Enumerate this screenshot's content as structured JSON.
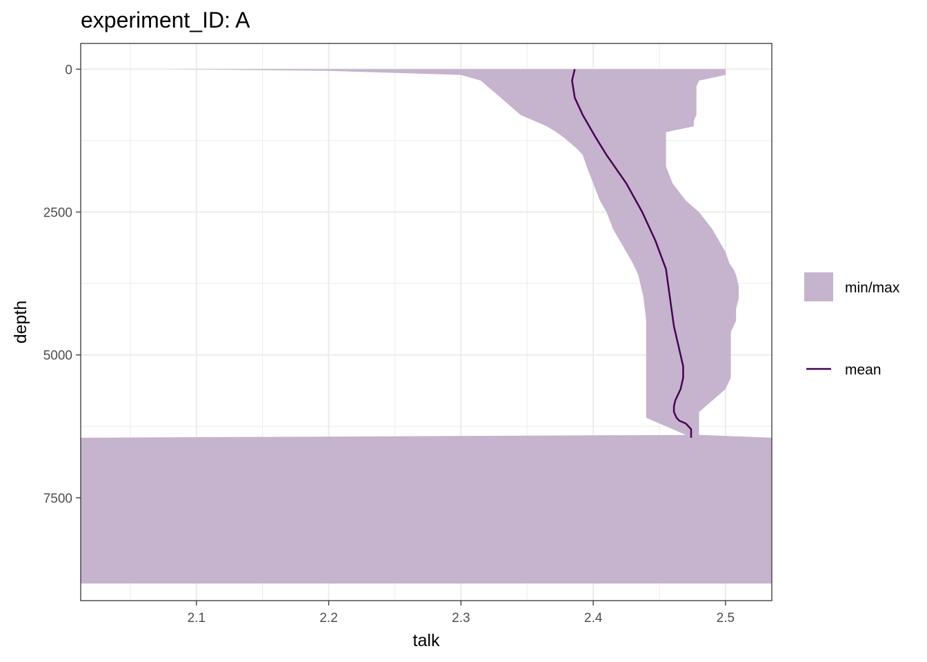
{
  "chart_data": {
    "type": "area",
    "title": "experiment_ID: A",
    "xlabel": "talk",
    "ylabel": "depth",
    "xlim": [
      2.0125,
      2.535
    ],
    "ylim": [
      -450,
      9300
    ],
    "y_reversed": true,
    "x_ticks": [
      2.1,
      2.2,
      2.3,
      2.4,
      2.5
    ],
    "x_tick_labels": [
      "2.1",
      "2.2",
      "2.3",
      "2.4",
      "2.5"
    ],
    "y_ticks": [
      0,
      2500,
      5000,
      7500
    ],
    "y_tick_labels": [
      "0",
      "2500",
      "5000",
      "7500"
    ],
    "grid": true,
    "legend_position": "right",
    "fill_color": "#c6b3cd",
    "line_color": "#440154",
    "series": [
      {
        "name": "min/max",
        "kind": "ribbon",
        "depth": [
          0,
          30,
          100,
          200,
          300,
          400,
          500,
          600,
          700,
          800,
          900,
          1000,
          1100,
          1200,
          1300,
          1400,
          1500,
          1700,
          2000,
          2300,
          2500,
          2800,
          3000,
          3200,
          3400,
          3500,
          3600,
          3700,
          3800,
          3900,
          4000,
          4200,
          4400,
          4600,
          4800,
          5000,
          5200,
          5400,
          5600,
          5800,
          6000,
          6100,
          6200,
          6300,
          6400,
          6450,
          6500,
          6600,
          6700,
          7000,
          7500,
          8000,
          8500,
          9000
        ],
        "min": [
          2.08,
          2.2,
          2.3,
          2.315,
          2.32,
          2.325,
          2.33,
          2.335,
          2.34,
          2.345,
          2.355,
          2.365,
          2.372,
          2.378,
          2.383,
          2.388,
          2.392,
          2.395,
          2.4,
          2.405,
          2.41,
          2.415,
          2.42,
          2.425,
          2.43,
          2.432,
          2.434,
          2.435,
          2.436,
          2.437,
          2.438,
          2.439,
          2.44,
          2.44,
          2.44,
          2.44,
          2.44,
          2.44,
          2.44,
          2.44,
          2.44,
          2.44,
          2.45,
          2.46,
          2.47,
          2.0125,
          2.0125,
          2.0125,
          2.0125,
          2.0125,
          2.0125,
          2.0125,
          2.0125,
          2.0125
        ],
        "max": [
          2.5,
          2.5,
          2.5,
          2.48,
          2.478,
          2.478,
          2.478,
          2.478,
          2.478,
          2.478,
          2.476,
          2.476,
          2.455,
          2.455,
          2.455,
          2.455,
          2.455,
          2.455,
          2.46,
          2.47,
          2.48,
          2.49,
          2.495,
          2.5,
          2.503,
          2.506,
          2.508,
          2.509,
          2.51,
          2.51,
          2.51,
          2.508,
          2.508,
          2.504,
          2.504,
          2.504,
          2.504,
          2.504,
          2.5,
          2.49,
          2.48,
          2.48,
          2.48,
          2.48,
          2.48,
          2.535,
          2.535,
          2.535,
          2.535,
          2.535,
          2.535,
          2.535,
          2.535,
          2.535
        ]
      },
      {
        "name": "mean",
        "kind": "line",
        "depth": [
          0,
          100,
          200,
          500,
          800,
          1200,
          1500,
          2000,
          2500,
          3000,
          3500,
          4000,
          4500,
          5000,
          5200,
          5400,
          5600,
          5800,
          5900,
          6000,
          6100,
          6150,
          6200,
          6300,
          6450
        ],
        "value": [
          2.386,
          2.385,
          2.384,
          2.386,
          2.392,
          2.402,
          2.41,
          2.425,
          2.437,
          2.447,
          2.455,
          2.458,
          2.461,
          2.466,
          2.468,
          2.468,
          2.466,
          2.462,
          2.461,
          2.461,
          2.463,
          2.465,
          2.47,
          2.474,
          2.474
        ]
      }
    ],
    "bottom_band": {
      "name": "min/max",
      "depth_top": [
        [
          2.0125,
          6500
        ],
        [
          2.2,
          6450
        ],
        [
          2.35,
          6440
        ],
        [
          2.45,
          6420
        ],
        [
          2.535,
          6480
        ]
      ],
      "depth_bottom": 9000
    }
  }
}
